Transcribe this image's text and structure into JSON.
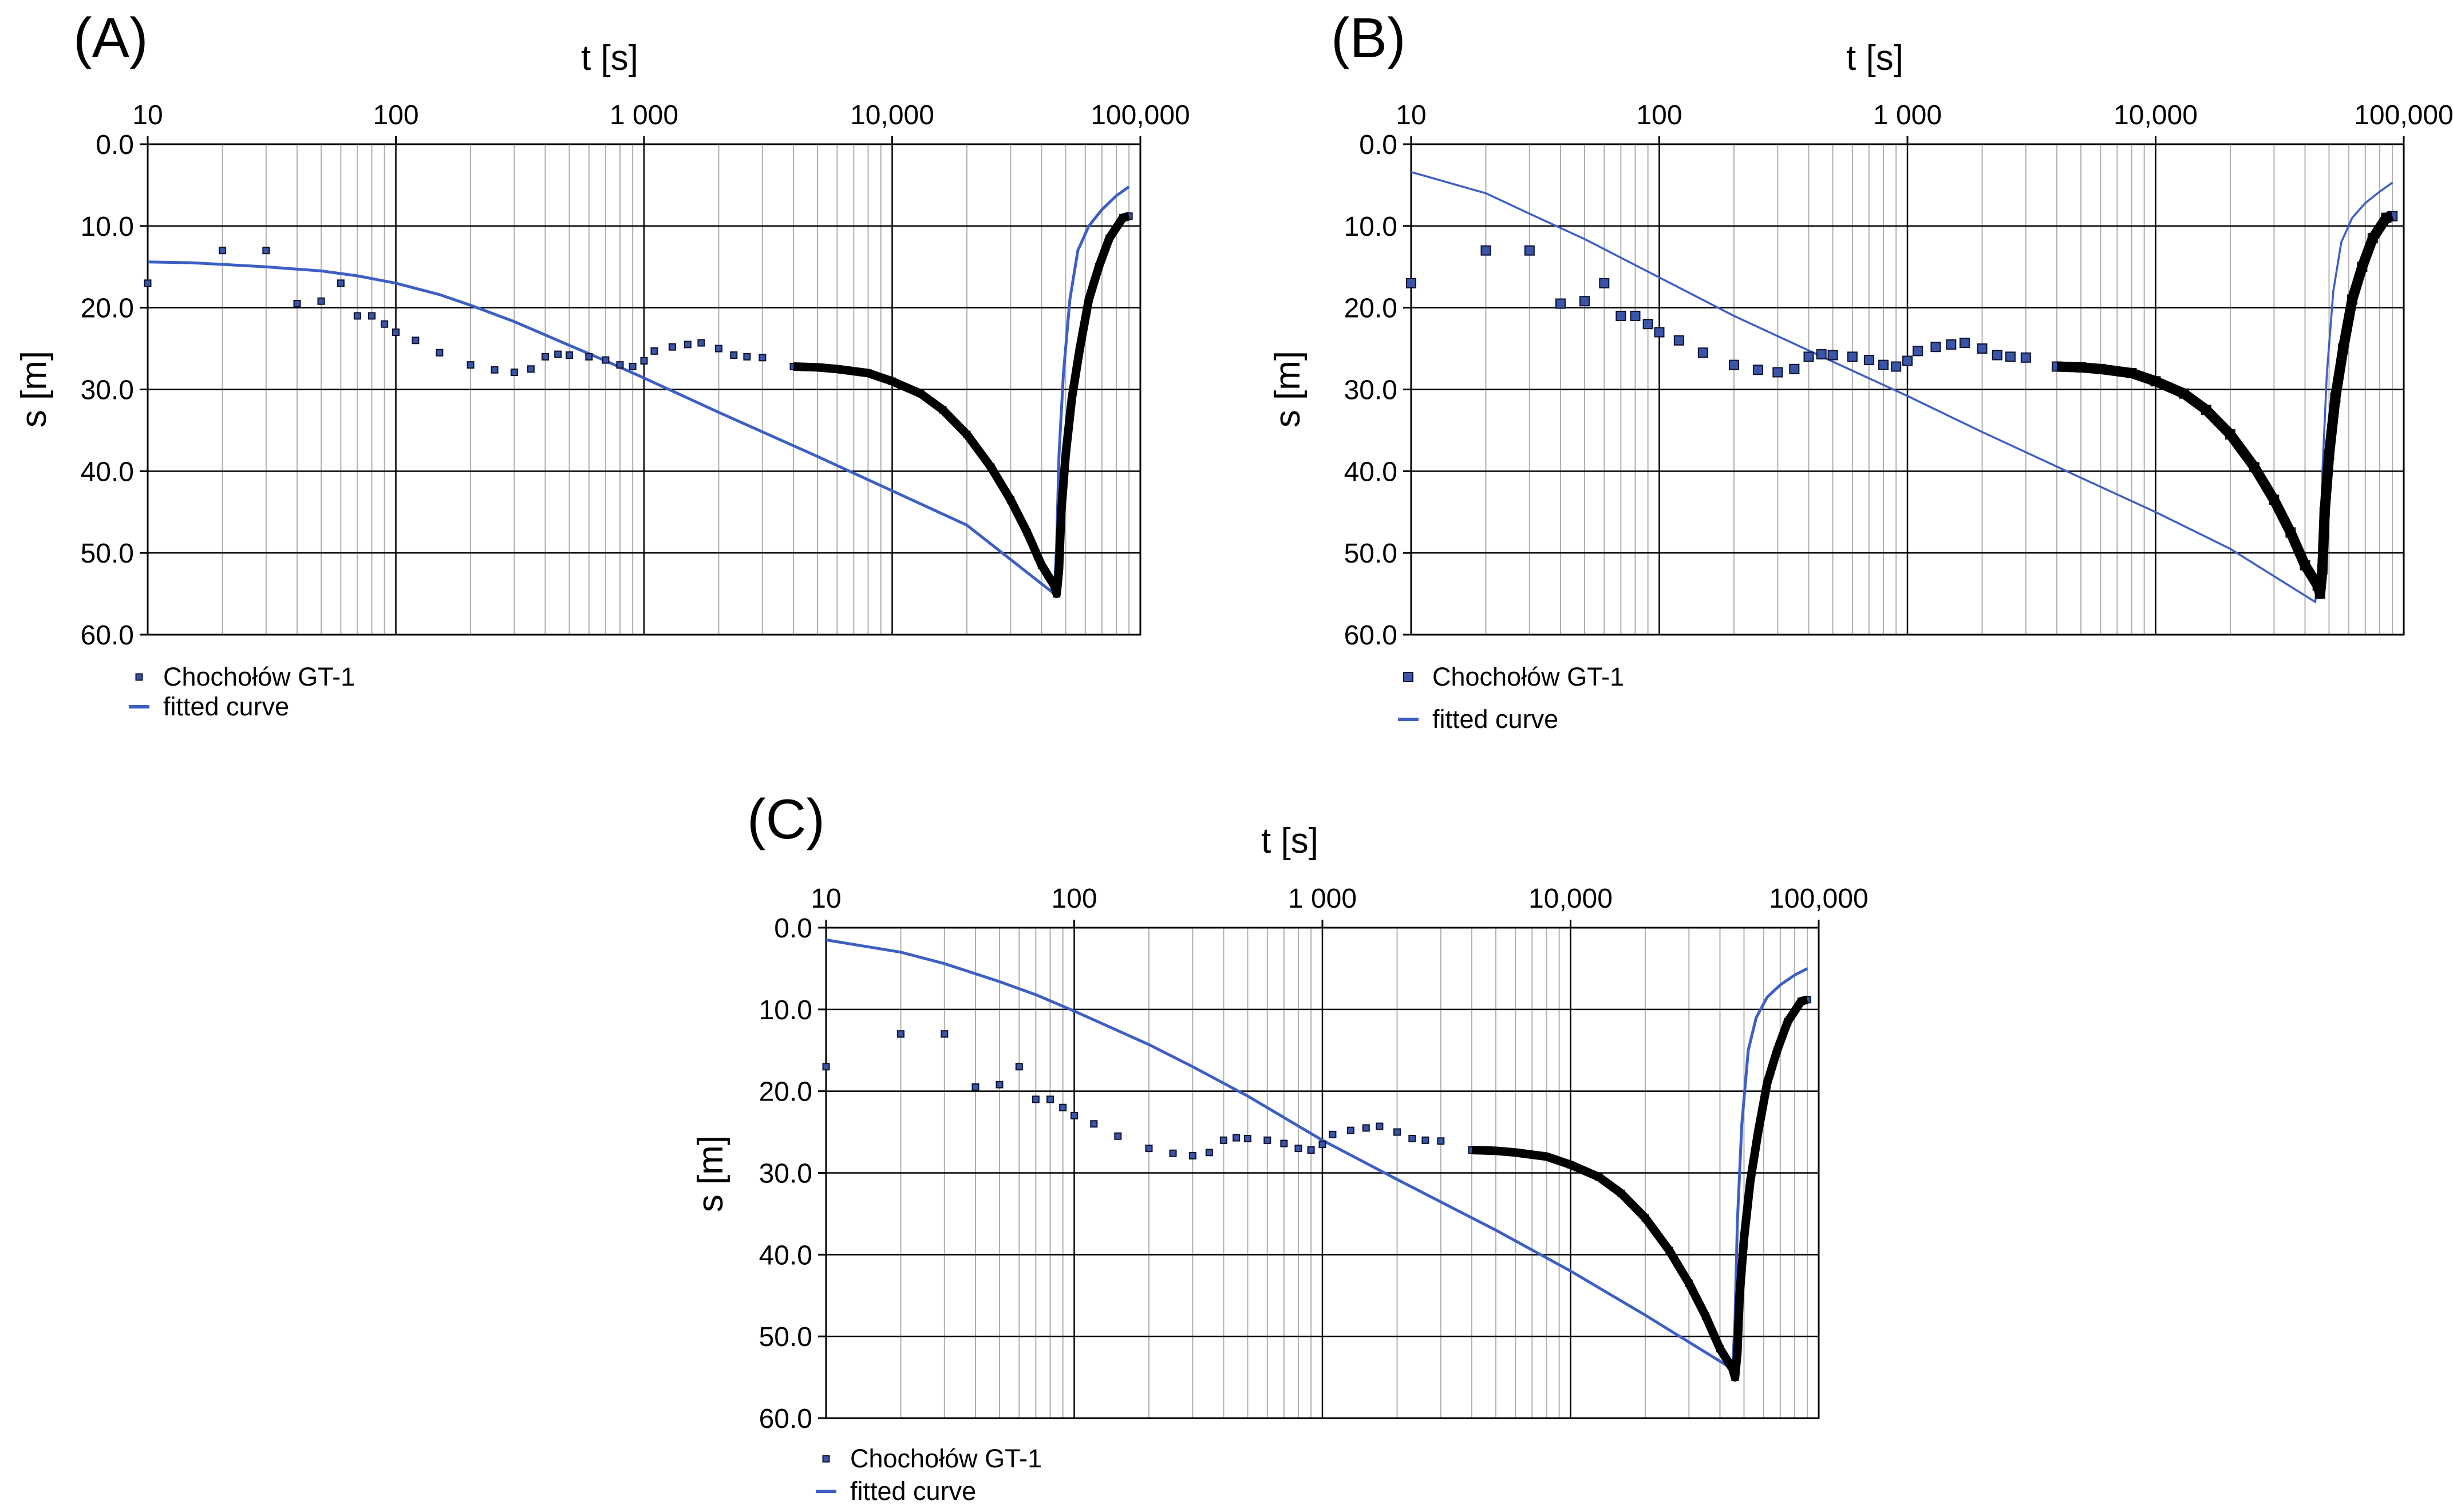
{
  "figure": {
    "panels": [
      "(A)",
      "(B)",
      "(C)"
    ],
    "colors": {
      "background": "#ffffff",
      "axis": "#000000",
      "grid_major": "#000000",
      "grid_minor": "#b0b0b0",
      "marker_fill": "#3a55a8",
      "marker_edge": "#0b1030",
      "fitted_curve": "#3d5fc4"
    }
  },
  "chart_data": [
    {
      "panel": "(A)",
      "type": "scatter",
      "title": "",
      "xlabel": "t [s]",
      "ylabel": "s [m]",
      "xscale": "log",
      "xlim": [
        10,
        100000
      ],
      "ylim": [
        0,
        60
      ],
      "y_inverted": true,
      "x_ticks": [
        10,
        100,
        1000,
        10000,
        100000
      ],
      "x_tick_labels": [
        "10",
        "100",
        "1 000",
        "10,000",
        "100,000"
      ],
      "y_ticks": [
        0,
        10,
        20,
        30,
        40,
        50,
        60
      ],
      "y_tick_labels": [
        "0.0",
        "10.0",
        "20.0",
        "30.0",
        "40.0",
        "50.0",
        "60.0"
      ],
      "grid": true,
      "legend_position": "below-left",
      "series": [
        {
          "name": "Chochołów GT-1",
          "kind": "markers",
          "marker_size": "small",
          "points": [
            [
              10,
              17.0
            ],
            [
              20,
              13.0
            ],
            [
              30,
              13.0
            ],
            [
              40,
              19.5
            ],
            [
              50,
              19.2
            ],
            [
              60,
              17.0
            ],
            [
              70,
              21.0
            ],
            [
              80,
              21.0
            ],
            [
              90,
              22.0
            ],
            [
              100,
              23.0
            ],
            [
              120,
              24.0
            ],
            [
              150,
              25.5
            ],
            [
              200,
              27.0
            ],
            [
              250,
              27.6
            ],
            [
              300,
              27.9
            ],
            [
              350,
              27.5
            ],
            [
              400,
              26.0
            ],
            [
              450,
              25.7
            ],
            [
              500,
              25.8
            ],
            [
              600,
              26.0
            ],
            [
              700,
              26.4
            ],
            [
              800,
              27.0
            ],
            [
              900,
              27.2
            ],
            [
              1000,
              26.5
            ],
            [
              1100,
              25.3
            ],
            [
              1300,
              24.8
            ],
            [
              1500,
              24.5
            ],
            [
              1700,
              24.3
            ],
            [
              2000,
              25.0
            ],
            [
              2300,
              25.8
            ],
            [
              2600,
              26.0
            ],
            [
              3000,
              26.1
            ],
            [
              4000,
              27.2
            ],
            [
              5000,
              27.3
            ],
            [
              6000,
              27.5
            ],
            [
              8000,
              28.0
            ],
            [
              10000,
              29.0
            ],
            [
              13000,
              30.5
            ],
            [
              16000,
              32.5
            ],
            [
              20000,
              35.5
            ],
            [
              25000,
              39.5
            ],
            [
              30000,
              43.5
            ],
            [
              35000,
              47.5
            ],
            [
              40000,
              51.5
            ],
            [
              45000,
              54.0
            ],
            [
              46000,
              55.0
            ],
            [
              47000,
              52.0
            ],
            [
              48000,
              45.0
            ],
            [
              50000,
              38.0
            ],
            [
              53000,
              31.0
            ],
            [
              57000,
              25.0
            ],
            [
              62000,
              19.0
            ],
            [
              68000,
              15.0
            ],
            [
              75000,
              11.5
            ],
            [
              85000,
              9.0
            ],
            [
              90000,
              8.8
            ]
          ]
        },
        {
          "name": "fitted curve",
          "kind": "line",
          "points": [
            [
              10,
              14.4
            ],
            [
              15,
              14.5
            ],
            [
              20,
              14.7
            ],
            [
              30,
              15.0
            ],
            [
              50,
              15.5
            ],
            [
              70,
              16.1
            ],
            [
              100,
              17.0
            ],
            [
              150,
              18.4
            ],
            [
              200,
              19.7
            ],
            [
              300,
              21.7
            ],
            [
              500,
              24.6
            ],
            [
              700,
              26.5
            ],
            [
              1000,
              28.6
            ],
            [
              2000,
              32.8
            ],
            [
              5000,
              38.2
            ],
            [
              10000,
              42.4
            ],
            [
              20000,
              46.6
            ],
            [
              45000,
              55.0
            ],
            [
              46000,
              49.0
            ],
            [
              47000,
              38.0
            ],
            [
              49000,
              28.0
            ],
            [
              52000,
              19.0
            ],
            [
              56000,
              13.0
            ],
            [
              62000,
              10.0
            ],
            [
              70000,
              8.0
            ],
            [
              80000,
              6.3
            ],
            [
              90000,
              5.2
            ]
          ]
        }
      ]
    },
    {
      "panel": "(B)",
      "type": "scatter",
      "title": "",
      "xlabel": "t [s]",
      "ylabel": "s [m]",
      "xscale": "log",
      "xlim": [
        10,
        100000
      ],
      "ylim": [
        0,
        60
      ],
      "y_inverted": true,
      "x_ticks": [
        10,
        100,
        1000,
        10000,
        100000
      ],
      "x_tick_labels": [
        "10",
        "100",
        "1 000",
        "10,000",
        "100,000"
      ],
      "y_ticks": [
        0,
        10,
        20,
        30,
        40,
        50,
        60
      ],
      "y_tick_labels": [
        "0.0",
        "10.0",
        "20.0",
        "30.0",
        "40.0",
        "50.0",
        "60.0"
      ],
      "grid": true,
      "legend_position": "below-left",
      "series": [
        {
          "name": "Chochołów GT-1",
          "kind": "markers",
          "marker_size": "large",
          "points": [
            [
              10,
              17.0
            ],
            [
              20,
              13.0
            ],
            [
              30,
              13.0
            ],
            [
              40,
              19.5
            ],
            [
              50,
              19.2
            ],
            [
              60,
              17.0
            ],
            [
              70,
              21.0
            ],
            [
              80,
              21.0
            ],
            [
              90,
              22.0
            ],
            [
              100,
              23.0
            ],
            [
              120,
              24.0
            ],
            [
              150,
              25.5
            ],
            [
              200,
              27.0
            ],
            [
              250,
              27.6
            ],
            [
              300,
              27.9
            ],
            [
              350,
              27.5
            ],
            [
              400,
              26.0
            ],
            [
              450,
              25.7
            ],
            [
              500,
              25.8
            ],
            [
              600,
              26.0
            ],
            [
              700,
              26.4
            ],
            [
              800,
              27.0
            ],
            [
              900,
              27.2
            ],
            [
              1000,
              26.5
            ],
            [
              1100,
              25.3
            ],
            [
              1300,
              24.8
            ],
            [
              1500,
              24.5
            ],
            [
              1700,
              24.3
            ],
            [
              2000,
              25.0
            ],
            [
              2300,
              25.8
            ],
            [
              2600,
              26.0
            ],
            [
              3000,
              26.1
            ],
            [
              4000,
              27.2
            ],
            [
              5000,
              27.3
            ],
            [
              6000,
              27.5
            ],
            [
              8000,
              28.0
            ],
            [
              10000,
              29.0
            ],
            [
              13000,
              30.5
            ],
            [
              16000,
              32.5
            ],
            [
              20000,
              35.5
            ],
            [
              25000,
              39.5
            ],
            [
              30000,
              43.5
            ],
            [
              35000,
              47.5
            ],
            [
              40000,
              51.5
            ],
            [
              45000,
              54.0
            ],
            [
              46000,
              55.0
            ],
            [
              47000,
              52.0
            ],
            [
              48000,
              45.0
            ],
            [
              50000,
              38.0
            ],
            [
              53000,
              31.0
            ],
            [
              57000,
              25.0
            ],
            [
              62000,
              19.0
            ],
            [
              68000,
              15.0
            ],
            [
              75000,
              11.5
            ],
            [
              85000,
              9.0
            ],
            [
              90000,
              8.8
            ]
          ]
        },
        {
          "name": "fitted curve",
          "kind": "line",
          "points": [
            [
              10,
              3.4
            ],
            [
              20,
              6.0
            ],
            [
              30,
              8.5
            ],
            [
              50,
              11.6
            ],
            [
              100,
              16.3
            ],
            [
              200,
              21.0
            ],
            [
              500,
              26.6
            ],
            [
              1000,
              30.8
            ],
            [
              2000,
              35.2
            ],
            [
              5000,
              40.8
            ],
            [
              10000,
              45.0
            ],
            [
              20000,
              49.5
            ],
            [
              44000,
              56.0
            ],
            [
              46000,
              50.0
            ],
            [
              47000,
              40.0
            ],
            [
              49000,
              28.0
            ],
            [
              52000,
              18.0
            ],
            [
              56000,
              12.0
            ],
            [
              62000,
              9.0
            ],
            [
              70000,
              7.2
            ],
            [
              80000,
              5.8
            ],
            [
              90000,
              4.7
            ]
          ]
        }
      ]
    },
    {
      "panel": "(C)",
      "type": "scatter",
      "title": "",
      "xlabel": "t [s]",
      "ylabel": "s [m]",
      "xscale": "log",
      "xlim": [
        10,
        100000
      ],
      "ylim": [
        0,
        60
      ],
      "y_inverted": true,
      "x_ticks": [
        10,
        100,
        1000,
        10000,
        100000
      ],
      "x_tick_labels": [
        "10",
        "100",
        "1 000",
        "10,000",
        "100,000"
      ],
      "y_ticks": [
        0,
        10,
        20,
        30,
        40,
        50,
        60
      ],
      "y_tick_labels": [
        "0.0",
        "10.0",
        "20.0",
        "30.0",
        "40.0",
        "50.0",
        "60.0"
      ],
      "grid": true,
      "legend_position": "below-left",
      "series": [
        {
          "name": "Chochołów GT-1",
          "kind": "markers",
          "marker_size": "small",
          "points": [
            [
              10,
              17.0
            ],
            [
              20,
              13.0
            ],
            [
              30,
              13.0
            ],
            [
              40,
              19.5
            ],
            [
              50,
              19.2
            ],
            [
              60,
              17.0
            ],
            [
              70,
              21.0
            ],
            [
              80,
              21.0
            ],
            [
              90,
              22.0
            ],
            [
              100,
              23.0
            ],
            [
              120,
              24.0
            ],
            [
              150,
              25.5
            ],
            [
              200,
              27.0
            ],
            [
              250,
              27.6
            ],
            [
              300,
              27.9
            ],
            [
              350,
              27.5
            ],
            [
              400,
              26.0
            ],
            [
              450,
              25.7
            ],
            [
              500,
              25.8
            ],
            [
              600,
              26.0
            ],
            [
              700,
              26.4
            ],
            [
              800,
              27.0
            ],
            [
              900,
              27.2
            ],
            [
              1000,
              26.5
            ],
            [
              1100,
              25.3
            ],
            [
              1300,
              24.8
            ],
            [
              1500,
              24.5
            ],
            [
              1700,
              24.3
            ],
            [
              2000,
              25.0
            ],
            [
              2300,
              25.8
            ],
            [
              2600,
              26.0
            ],
            [
              3000,
              26.1
            ],
            [
              4000,
              27.2
            ],
            [
              5000,
              27.3
            ],
            [
              6000,
              27.5
            ],
            [
              8000,
              28.0
            ],
            [
              10000,
              29.0
            ],
            [
              13000,
              30.5
            ],
            [
              16000,
              32.5
            ],
            [
              20000,
              35.5
            ],
            [
              25000,
              39.5
            ],
            [
              30000,
              43.5
            ],
            [
              35000,
              47.5
            ],
            [
              40000,
              51.5
            ],
            [
              45000,
              54.0
            ],
            [
              46000,
              55.0
            ],
            [
              47000,
              52.0
            ],
            [
              48000,
              45.0
            ],
            [
              50000,
              38.0
            ],
            [
              53000,
              31.0
            ],
            [
              57000,
              25.0
            ],
            [
              62000,
              19.0
            ],
            [
              68000,
              15.0
            ],
            [
              75000,
              11.5
            ],
            [
              85000,
              9.0
            ],
            [
              90000,
              8.8
            ]
          ]
        },
        {
          "name": "fitted curve",
          "kind": "line",
          "points": [
            [
              10,
              1.5
            ],
            [
              20,
              3.0
            ],
            [
              30,
              4.4
            ],
            [
              50,
              6.6
            ],
            [
              70,
              8.2
            ],
            [
              100,
              10.2
            ],
            [
              200,
              14.3
            ],
            [
              300,
              17.0
            ],
            [
              500,
              20.6
            ],
            [
              1000,
              26.0
            ],
            [
              2000,
              30.8
            ],
            [
              5000,
              37.0
            ],
            [
              10000,
              42.0
            ],
            [
              20000,
              47.4
            ],
            [
              45000,
              54.0
            ],
            [
              46000,
              48.0
            ],
            [
              47000,
              36.0
            ],
            [
              49000,
              24.0
            ],
            [
              52000,
              15.0
            ],
            [
              56000,
              11.0
            ],
            [
              62000,
              8.5
            ],
            [
              70000,
              7.0
            ],
            [
              80000,
              5.8
            ],
            [
              90000,
              5.0
            ]
          ]
        }
      ]
    }
  ]
}
